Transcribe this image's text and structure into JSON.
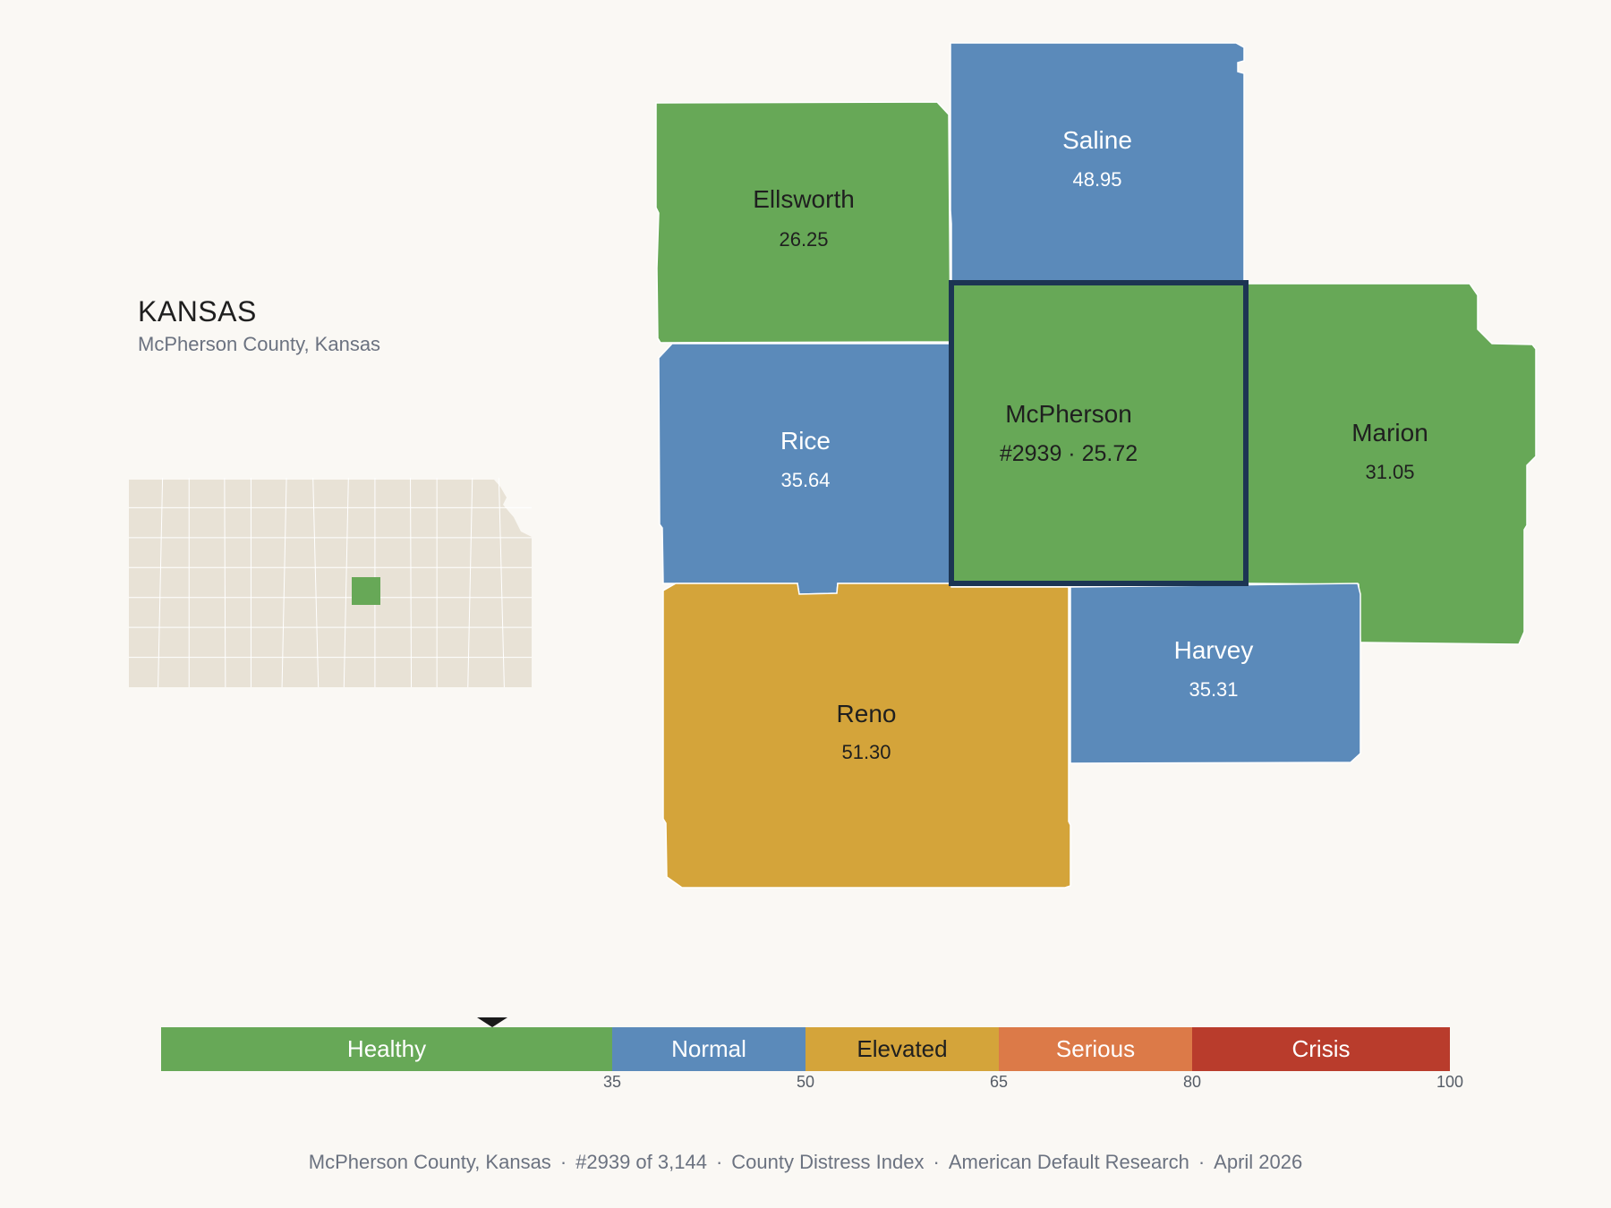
{
  "header": {
    "state_title": "KANSAS",
    "subtitle": "McPherson County, Kansas"
  },
  "locator": {
    "base_color": "#e8e2d6",
    "highlight_color": "#67a857"
  },
  "counties": [
    {
      "id": "ellsworth",
      "name": "Ellsworth",
      "value_text": "26.25",
      "value": 26.25,
      "color": "#67a857",
      "text_color": "#1f1f1f"
    },
    {
      "id": "saline",
      "name": "Saline",
      "value_text": "48.95",
      "value": 48.95,
      "color": "#5b8aba",
      "text_color": "#ffffff"
    },
    {
      "id": "rice",
      "name": "Rice",
      "value_text": "35.64",
      "value": 35.64,
      "color": "#5b8aba",
      "text_color": "#ffffff"
    },
    {
      "id": "mcpherson",
      "name": "McPherson",
      "value_text": "#2939 · 25.72",
      "value": 25.72,
      "rank": 2939,
      "color": "#67a857",
      "text_color": "#1f1f1f",
      "selected": true
    },
    {
      "id": "marion",
      "name": "Marion",
      "value_text": "31.05",
      "value": 31.05,
      "color": "#67a857",
      "text_color": "#1f1f1f"
    },
    {
      "id": "reno",
      "name": "Reno",
      "value_text": "51.30",
      "value": 51.3,
      "color": "#d4a43a",
      "text_color": "#1f1f1f"
    },
    {
      "id": "harvey",
      "name": "Harvey",
      "value_text": "35.31",
      "value": 35.31,
      "color": "#5b8aba",
      "text_color": "#ffffff"
    }
  ],
  "selected_outline_color": "#1c3553",
  "scale": {
    "min": 0,
    "max": 100,
    "marker_value": 25.72,
    "ticks": [
      "35",
      "50",
      "65",
      "80",
      "100"
    ],
    "tick_values": [
      35,
      50,
      65,
      80,
      100
    ],
    "segments": [
      {
        "label": "Healthy",
        "from": 0,
        "to": 35,
        "color": "#67a857",
        "text_color": "#ffffff"
      },
      {
        "label": "Normal",
        "from": 35,
        "to": 50,
        "color": "#5b8aba",
        "text_color": "#ffffff"
      },
      {
        "label": "Elevated",
        "from": 50,
        "to": 65,
        "color": "#d4a43a",
        "text_color": "#1f1f1f"
      },
      {
        "label": "Serious",
        "from": 65,
        "to": 80,
        "color": "#dc7a48",
        "text_color": "#ffffff"
      },
      {
        "label": "Crisis",
        "from": 80,
        "to": 100,
        "color": "#b93c2c",
        "text_color": "#ffffff"
      }
    ]
  },
  "footer": {
    "items": [
      "McPherson County, Kansas",
      "#2939 of 3,144",
      "County Distress Index",
      "American Default Research",
      "April 2026"
    ],
    "separator": "·"
  }
}
